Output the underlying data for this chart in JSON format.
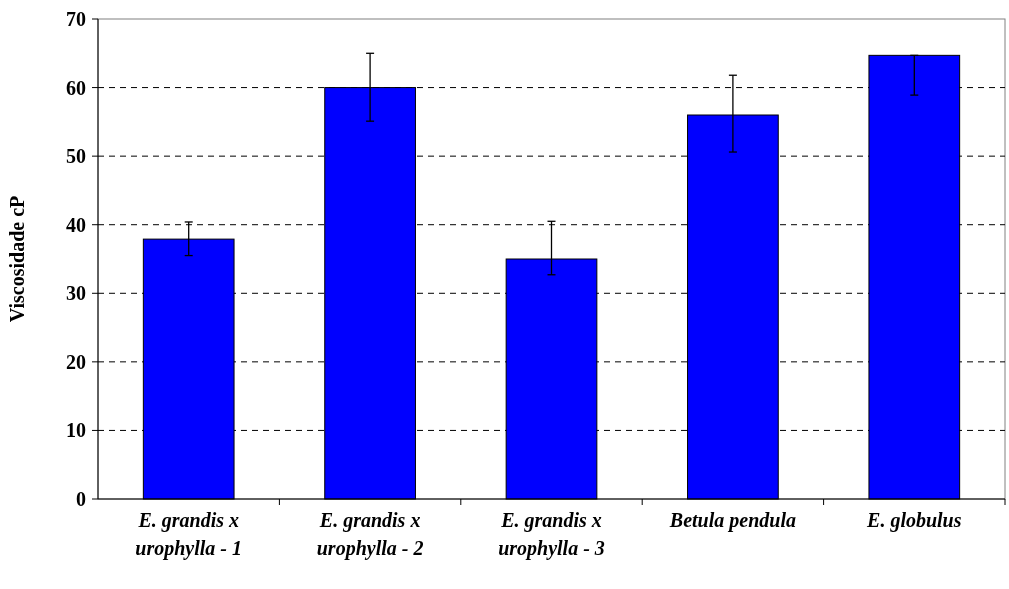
{
  "chart_data": {
    "type": "bar",
    "ylabel": "Viscosidade cP",
    "categories": [
      "E. grandis x urophylla - 1",
      "E. grandis x urophylla - 2",
      "E. grandis x urophylla - 3",
      "Betula pendula",
      "E. globulus"
    ],
    "values": [
      37.9,
      60,
      35,
      56,
      64.7
    ],
    "errors": [
      [
        35.5,
        40.4
      ],
      [
        55.1,
        65
      ],
      [
        32.7,
        40.5
      ],
      [
        50.6,
        61.8
      ],
      [
        58.9,
        64.7
      ]
    ],
    "color": "#0000ff",
    "ylim": [
      0,
      70
    ],
    "yticks": [
      0,
      10,
      20,
      30,
      40,
      50,
      60,
      70
    ],
    "grid": "y"
  }
}
